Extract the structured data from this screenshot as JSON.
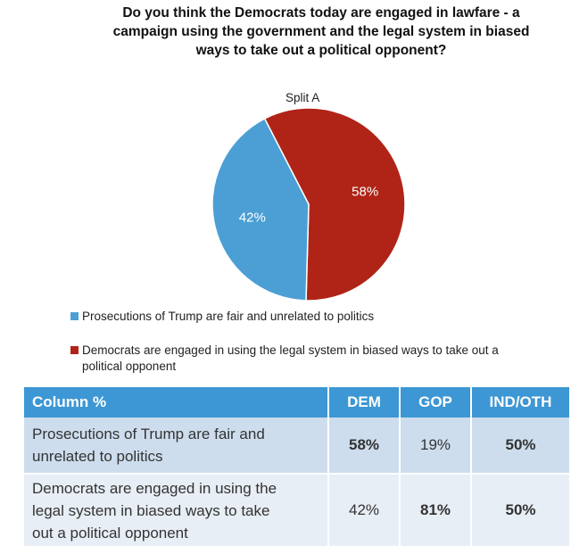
{
  "title_lines": [
    "Do you think the Democrats today are engaged in lawfare - a",
    "campaign using the government and the legal system in biased",
    "ways to take out a political opponent?"
  ],
  "chart_data": {
    "type": "pie",
    "title": "Split A",
    "slices": [
      {
        "label": "Democrats are engaged in using the legal system in biased ways to take out a political opponent",
        "value": 58,
        "display": "58%",
        "color": "#b02418"
      },
      {
        "label": "Prosecutions of Trump are fair and unrelated to politics",
        "value": 42,
        "display": "42%",
        "color": "#4b9fd5"
      }
    ],
    "legend": [
      {
        "label": "Prosecutions of Trump are fair and unrelated to politics",
        "color": "#4b9fd5"
      },
      {
        "label_line1": "Democrats are engaged in using the legal system in biased ways to take out a",
        "label_line2": "political opponent",
        "color": "#b02418"
      }
    ]
  },
  "table": {
    "headers": [
      "Column %",
      "DEM",
      "GOP",
      "IND/OTH"
    ],
    "rows": [
      {
        "label_lines": [
          "Prosecutions of Trump are fair and",
          "unrelated to politics"
        ],
        "values": [
          "58%",
          "19%",
          "50%"
        ]
      },
      {
        "label_lines": [
          "Democrats are engaged in using the",
          "legal system in biased ways to take",
          "out a political opponent"
        ],
        "values": [
          "42%",
          "81%",
          "50%"
        ]
      }
    ]
  }
}
